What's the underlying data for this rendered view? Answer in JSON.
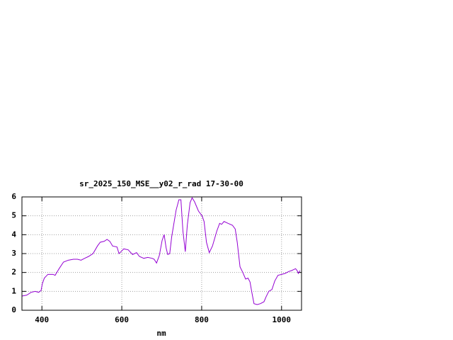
{
  "chart_data": {
    "type": "line",
    "title": "sr_2025_150_MSE__y02_r_rad 17-30-00",
    "x_label": "nm",
    "xlim": [
      350,
      1050
    ],
    "ylim": [
      0,
      6
    ],
    "xticks": [
      400,
      600,
      800,
      1000
    ],
    "yticks": [
      0,
      1,
      2,
      3,
      4,
      5,
      6
    ],
    "grid": true,
    "series": [
      {
        "color": "#9400d3",
        "x": [
          350,
          362,
          373,
          383,
          392,
          398,
          401,
          406,
          415,
          428,
          433,
          443,
          454,
          466,
          479,
          489,
          498,
          507,
          517,
          528,
          539,
          546,
          556,
          563,
          570,
          577,
          588,
          593,
          598,
          605,
          616,
          627,
          637,
          644,
          655,
          665,
          676,
          681,
          687,
          694,
          701,
          706,
          711,
          715,
          720,
          725,
          736,
          743,
          748,
          753,
          759,
          764,
          771,
          776,
          782,
          792,
          801,
          806,
          812,
          819,
          827,
          838,
          845,
          850,
          856,
          866,
          877,
          884,
          889,
          896,
          903,
          910,
          916,
          921,
          926,
          931,
          939,
          947,
          956,
          961,
          968,
          976,
          983,
          991,
          1000,
          1009,
          1018,
          1025,
          1030,
          1035,
          1039,
          1042,
          1046
        ],
        "values": [
          0.75,
          0.8,
          0.95,
          1.0,
          0.95,
          1.05,
          1.4,
          1.7,
          1.9,
          1.9,
          1.85,
          2.2,
          2.55,
          2.65,
          2.7,
          2.7,
          2.65,
          2.75,
          2.85,
          3.0,
          3.4,
          3.6,
          3.65,
          3.75,
          3.65,
          3.4,
          3.35,
          3.0,
          3.1,
          3.25,
          3.2,
          2.95,
          3.05,
          2.85,
          2.75,
          2.8,
          2.75,
          2.7,
          2.5,
          2.9,
          3.7,
          4.0,
          3.3,
          2.95,
          3.0,
          3.9,
          5.3,
          5.85,
          5.85,
          4.2,
          3.1,
          4.5,
          5.7,
          5.95,
          5.75,
          5.25,
          5.0,
          4.7,
          3.6,
          3.05,
          3.4,
          4.2,
          4.6,
          4.55,
          4.7,
          4.6,
          4.5,
          4.3,
          3.6,
          2.3,
          2.0,
          1.65,
          1.7,
          1.5,
          0.9,
          0.35,
          0.3,
          0.35,
          0.45,
          0.7,
          1.0,
          1.1,
          1.55,
          1.85,
          1.9,
          1.95,
          2.05,
          2.1,
          2.15,
          2.2,
          2.1,
          1.95,
          2.1
        ]
      }
    ]
  }
}
